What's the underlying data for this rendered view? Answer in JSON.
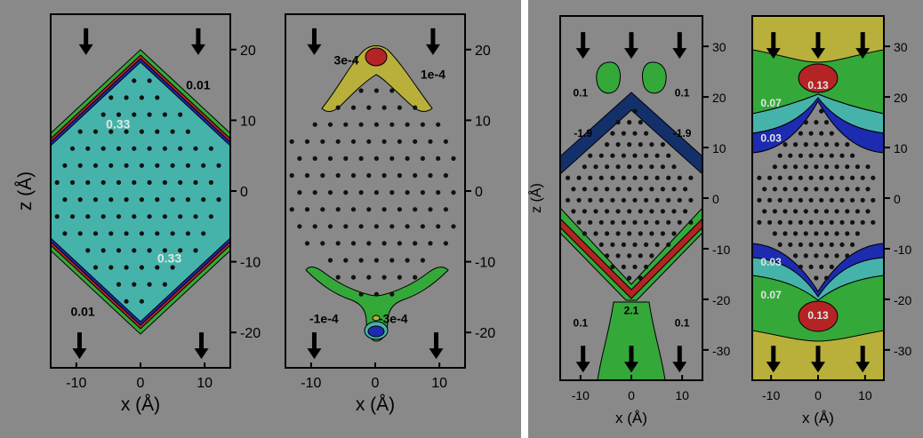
{
  "colors": {
    "background": "#898989",
    "divider": "#ffffff",
    "teal": "#46b3ab",
    "green": "#35a83a",
    "red": "#b42424",
    "blue": "#1c2bb0",
    "yellow": "#b8b03a",
    "navy": "#13306a",
    "atom": "#111111"
  },
  "chart_data": [
    {
      "id": "panel-a",
      "type": "contour",
      "xlabel": "x (Å)",
      "ylabel": "z (Å)",
      "xlim": [
        -14,
        14
      ],
      "ylim": [
        -25,
        25
      ],
      "xticks": [
        -10,
        0,
        10
      ],
      "yticks": [
        -20,
        -10,
        0,
        10,
        20
      ],
      "contour_labels": [
        {
          "text": "0.01",
          "x": 9,
          "z": 15
        },
        {
          "text": "0.33",
          "x": -3.5,
          "z": 9.5
        },
        {
          "text": "0.33",
          "x": 4.5,
          "z": -9.5
        },
        {
          "text": "0.01",
          "x": -9,
          "z": -17
        }
      ],
      "arrows": [
        {
          "x": -8.5,
          "z": 21
        },
        {
          "x": 9,
          "z": 21
        },
        {
          "x": -9.5,
          "z": -22
        },
        {
          "x": 9.5,
          "z": -22
        }
      ]
    },
    {
      "id": "panel-b",
      "type": "contour",
      "xlabel": "x (Å)",
      "ylabel": "",
      "xlim": [
        -14,
        14
      ],
      "ylim": [
        -25,
        25
      ],
      "xticks": [
        -10,
        0,
        10
      ],
      "yticks": [
        -20,
        -10,
        0,
        10,
        20
      ],
      "contour_labels": [
        {
          "text": "3e-4",
          "x": -4.5,
          "z": 18.5
        },
        {
          "text": "1e-4",
          "x": 9,
          "z": 16.5
        },
        {
          "text": "-1e-4",
          "x": -8,
          "z": -18
        },
        {
          "text": "-3e-4",
          "x": 2.8,
          "z": -18
        }
      ],
      "arrows": [
        {
          "x": -9.5,
          "z": 21
        },
        {
          "x": 9,
          "z": 21
        },
        {
          "x": -9.5,
          "z": -22
        },
        {
          "x": 9.5,
          "z": -22
        }
      ]
    },
    {
      "id": "panel-c",
      "type": "contour",
      "xlabel": "x (Å)",
      "ylabel": "z (Å)",
      "xlim": [
        -14,
        14
      ],
      "ylim": [
        -36,
        36
      ],
      "xticks": [
        -10,
        0,
        10
      ],
      "yticks": [
        -30,
        -20,
        -10,
        0,
        10,
        20,
        30
      ],
      "contour_labels": [
        {
          "text": "0.1",
          "x": -10,
          "z": 21
        },
        {
          "text": "0.1",
          "x": 10,
          "z": 21
        },
        {
          "text": "-1.9",
          "x": -9.5,
          "z": 13
        },
        {
          "text": "-1.9",
          "x": 10,
          "z": 13
        },
        {
          "text": "0.1",
          "x": -10,
          "z": -24.5
        },
        {
          "text": "2.1",
          "x": 0,
          "z": -22
        },
        {
          "text": "0.1",
          "x": 10,
          "z": -24.5
        }
      ],
      "arrows": [
        {
          "x": -9.5,
          "z": 30
        },
        {
          "x": 0,
          "z": 30
        },
        {
          "x": 9.5,
          "z": 30
        },
        {
          "x": -9.5,
          "z": -32
        },
        {
          "x": 0,
          "z": -32
        },
        {
          "x": 9.5,
          "z": -32
        }
      ]
    },
    {
      "id": "panel-d",
      "type": "contour",
      "xlabel": "x (Å)",
      "ylabel": "",
      "xlim": [
        -14,
        14
      ],
      "ylim": [
        -36,
        36
      ],
      "xticks": [
        -10,
        0,
        10
      ],
      "yticks": [
        -30,
        -20,
        -10,
        0,
        10,
        20,
        30
      ],
      "contour_labels": [
        {
          "text": "0.13",
          "x": 0,
          "z": 22.5
        },
        {
          "text": "0.07",
          "x": -10,
          "z": 19
        },
        {
          "text": "0.03",
          "x": -10,
          "z": 12
        },
        {
          "text": "0.03",
          "x": -10,
          "z": -12.5
        },
        {
          "text": "0.07",
          "x": -10,
          "z": -19
        },
        {
          "text": "0.13",
          "x": 0,
          "z": -23
        }
      ],
      "arrows": [
        {
          "x": -9.5,
          "z": 30
        },
        {
          "x": 0,
          "z": 30
        },
        {
          "x": 9.5,
          "z": 30
        },
        {
          "x": -9.5,
          "z": -32
        },
        {
          "x": 0,
          "z": -32
        },
        {
          "x": 9.5,
          "z": -32
        }
      ]
    }
  ]
}
